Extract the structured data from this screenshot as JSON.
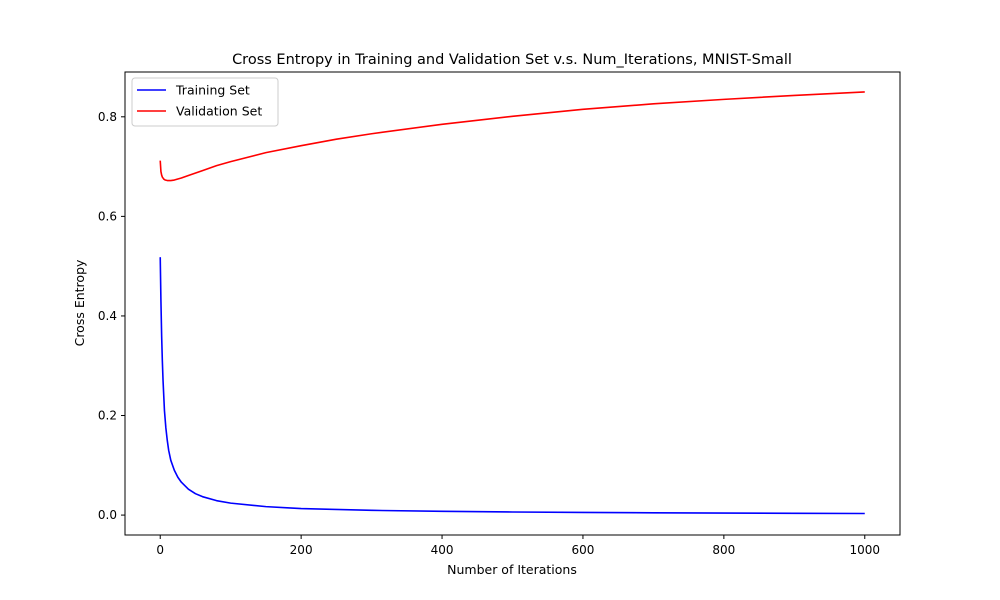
{
  "chart_data": {
    "type": "line",
    "title": "Cross Entropy in Training and Validation Set v.s. Num_Iterations, MNIST-Small",
    "xlabel": "Number of Iterations",
    "ylabel": "Cross Entropy",
    "xlim": [
      -50,
      1050
    ],
    "ylim": [
      -0.04,
      0.89
    ],
    "xticks": [
      0,
      200,
      400,
      600,
      800,
      1000
    ],
    "yticks": [
      0.0,
      0.2,
      0.4,
      0.6,
      0.8
    ],
    "xtick_labels": [
      "0",
      "200",
      "400",
      "600",
      "800",
      "1000"
    ],
    "ytick_labels": [
      "0.0",
      "0.2",
      "0.4",
      "0.6",
      "0.8"
    ],
    "grid": false,
    "legend_position": "top-left",
    "series": [
      {
        "name": "Training Set",
        "color": "#0000ff",
        "x": [
          0,
          1,
          2,
          3,
          4,
          5,
          6,
          8,
          10,
          12,
          15,
          20,
          25,
          30,
          40,
          50,
          60,
          80,
          100,
          150,
          200,
          300,
          400,
          500,
          600,
          700,
          800,
          900,
          1000
        ],
        "y": [
          0.518,
          0.43,
          0.36,
          0.31,
          0.27,
          0.24,
          0.21,
          0.175,
          0.15,
          0.13,
          0.11,
          0.09,
          0.076,
          0.066,
          0.052,
          0.043,
          0.037,
          0.029,
          0.024,
          0.017,
          0.013,
          0.0095,
          0.0075,
          0.0062,
          0.0053,
          0.0046,
          0.004,
          0.0036,
          0.0032
        ]
      },
      {
        "name": "Validation Set",
        "color": "#ff0000",
        "x": [
          0,
          1,
          2,
          3,
          5,
          7,
          10,
          15,
          20,
          30,
          40,
          60,
          80,
          100,
          150,
          200,
          250,
          300,
          400,
          500,
          600,
          700,
          800,
          900,
          1000
        ],
        "y": [
          0.712,
          0.69,
          0.683,
          0.679,
          0.675,
          0.673,
          0.672,
          0.672,
          0.673,
          0.677,
          0.682,
          0.692,
          0.702,
          0.71,
          0.728,
          0.742,
          0.755,
          0.766,
          0.785,
          0.801,
          0.815,
          0.826,
          0.835,
          0.843,
          0.85
        ]
      }
    ]
  }
}
